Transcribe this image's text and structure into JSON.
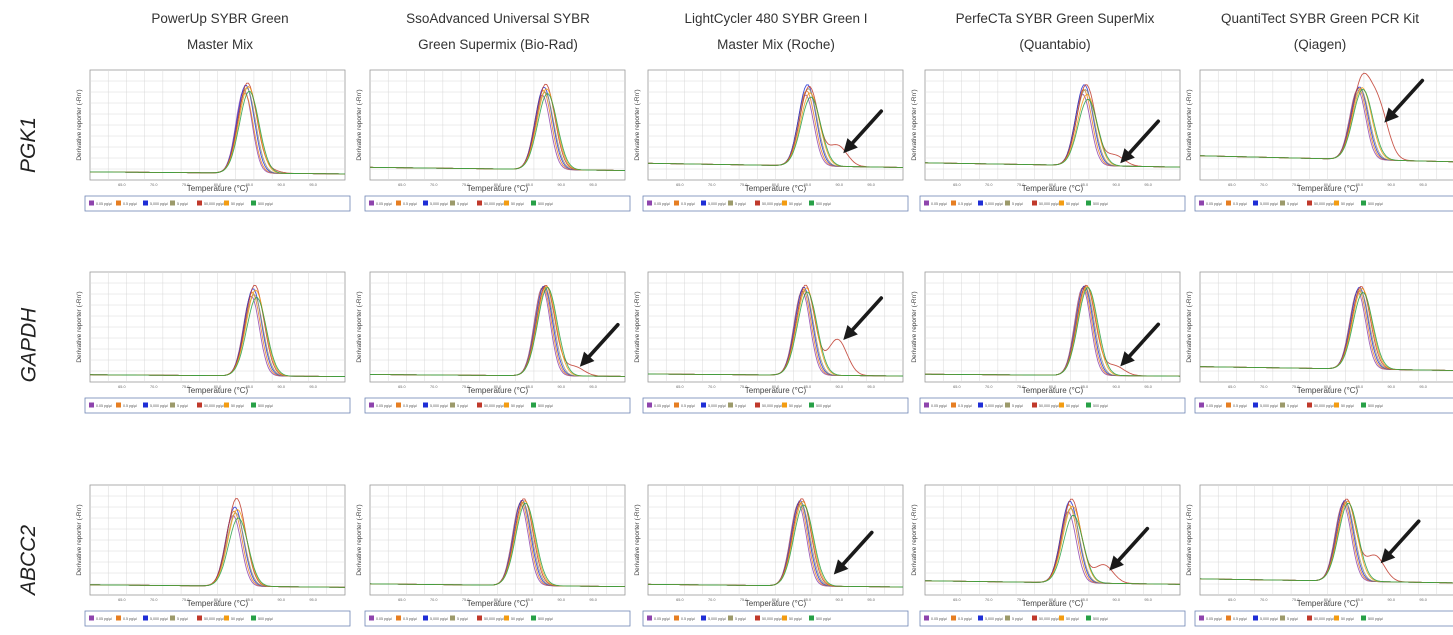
{
  "columns": [
    {
      "line1": "PowerUp SYBR Green",
      "line2": "Master Mix"
    },
    {
      "line1": "SsoAdvanced Universal SYBR",
      "line2": "Green Supermix (Bio-Rad)"
    },
    {
      "line1": "LightCycler 480 SYBR Green I",
      "line2": "Master Mix (Roche)"
    },
    {
      "line1": "PerfeCTa SYBR Green SuperMix",
      "line2": "(Quantabio)"
    },
    {
      "line1": "QuantiTect SYBR Green PCR Kit",
      "line2": "(Qiagen)"
    }
  ],
  "rows": [
    {
      "gene": "PGK1"
    },
    {
      "gene": "GAPDH"
    },
    {
      "gene": "ABCC2"
    }
  ],
  "axis_labels": {
    "x": "Temperature (°C)",
    "y": "Derivative reporter (-Rn')"
  },
  "colors": {
    "arrow": "#1a1a1a",
    "grid": "#d8d8d8",
    "plot_border": "#9a9a9a",
    "legend_border": "#6f86b5"
  },
  "chart_data": [
    {
      "type": "line",
      "grid": true,
      "xlim": [
        60,
        95
      ],
      "x_ticks": [
        "65.0",
        "70.0",
        "75.0",
        "80.0",
        "85.0",
        "90.0",
        "95.0"
      ],
      "series_colors": [
        "#8e44ad",
        "#e67e22",
        "#1f2ed6",
        "#9c9a6a",
        "#c0392b",
        "#f39c12",
        "#27a046"
      ],
      "legend": [
        "0.05 pg/µl",
        "0.5 pg/µl",
        "5,000 pg/µl",
        "5 pg/µl",
        "50,000 pg/µl",
        "50 pg/µl",
        "500 pg/µl"
      ],
      "panels": [
        {
          "gene": "PGK1",
          "reagent": "PowerUp SYBR Green Master Mix",
          "peak_tm": 81.5,
          "peak_values": [
            1.35,
            1.3,
            1.42,
            1.38,
            1.45,
            1.4,
            1.33
          ],
          "baseline": 0.12,
          "extra_peak": {
            "tm": 84.5,
            "value": 0.05
          },
          "arrow": false
        },
        {
          "gene": "PGK1",
          "reagent": "SsoAdvanced Universal SYBR Green Supermix (Bio-Rad)",
          "peak_tm": 84.0,
          "peak_values": [
            0.55,
            0.58,
            0.6,
            0.57,
            0.62,
            0.59,
            0.56
          ],
          "baseline": 0.08,
          "extra_peak": null,
          "arrow": false
        },
        {
          "gene": "PGK1",
          "reagent": "LightCycler 480 SYBR Green I Master Mix (Roche)",
          "peak_tm": 82.0,
          "peak_values": [
            0.42,
            0.44,
            0.47,
            0.45,
            0.46,
            0.43,
            0.41
          ],
          "baseline": 0.08,
          "extra_peak": {
            "tm": 86.0,
            "value": 0.1
          },
          "arrow": true
        },
        {
          "gene": "PGK1",
          "reagent": "PerfeCTa SYBR Green SuperMix (Quantabio)",
          "peak_tm": 82.0,
          "peak_values": [
            0.18,
            0.19,
            0.2,
            0.19,
            0.2,
            0.18,
            0.17
          ],
          "baseline": 0.035,
          "extra_peak": {
            "tm": 86.0,
            "value": 0.022
          },
          "arrow": true
        },
        {
          "gene": "PGK1",
          "reagent": "QuantiTect SYBR Green PCR Kit (Qiagen)",
          "peak_tm": 82.0,
          "peak_values": [
            0.155,
            0.158,
            0.16,
            0.157,
            0.162,
            0.159,
            0.156
          ],
          "baseline": 0.04,
          "extra_peak": {
            "tm": 84.5,
            "value": 0.085
          },
          "arrow": true
        },
        {
          "gene": "GAPDH",
          "reagent": "PowerUp SYBR Green Master Mix",
          "peak_tm": 82.5,
          "peak_values": [
            1.2,
            1.25,
            1.3,
            1.22,
            1.35,
            1.28,
            1.18
          ],
          "baseline": 0.1,
          "extra_peak": null,
          "arrow": false
        },
        {
          "gene": "GAPDH",
          "reagent": "SsoAdvanced Universal SYBR Green Supermix (Bio-Rad)",
          "peak_tm": 84.0,
          "peak_values": [
            2.55,
            2.58,
            2.6,
            2.57,
            2.62,
            2.59,
            2.56
          ],
          "baseline": 0.2,
          "extra_peak": {
            "tm": 88.0,
            "value": 0.25
          },
          "arrow": true
        },
        {
          "gene": "GAPDH",
          "reagent": "LightCycler 480 SYBR Green I Master Mix (Roche)",
          "peak_tm": 81.5,
          "peak_values": [
            2.3,
            2.35,
            2.4,
            2.32,
            2.45,
            2.38,
            2.28
          ],
          "baseline": 0.2,
          "extra_peak": {
            "tm": 86.0,
            "value": 0.9
          },
          "arrow": true
        },
        {
          "gene": "GAPDH",
          "reagent": "PerfeCTa SYBR Green SuperMix (Quantabio)",
          "peak_tm": 82.0,
          "peak_values": [
            2.45,
            2.48,
            2.5,
            2.47,
            2.52,
            2.49,
            2.46
          ],
          "baseline": 0.2,
          "extra_peak": {
            "tm": 86.0,
            "value": 0.25
          },
          "arrow": true
        },
        {
          "gene": "GAPDH",
          "reagent": "QuantiTect SYBR Green PCR Kit (Qiagen)",
          "peak_tm": 82.0,
          "peak_values": [
            0.182,
            0.186,
            0.19,
            0.184,
            0.192,
            0.188,
            0.18
          ],
          "baseline": 0.03,
          "extra_peak": null,
          "arrow": false
        },
        {
          "gene": "ABCC2",
          "reagent": "PowerUp SYBR Green Master Mix",
          "peak_tm": 80.0,
          "peak_values": [
            0.95,
            1.0,
            1.05,
            0.98,
            1.15,
            1.02,
            0.92
          ],
          "baseline": 0.12,
          "extra_peak": null,
          "arrow": false
        },
        {
          "gene": "ABCC2",
          "reagent": "SsoAdvanced Universal SYBR Green Supermix (Bio-Rad)",
          "peak_tm": 81.0,
          "peak_values": [
            1.25,
            1.28,
            1.3,
            1.27,
            1.32,
            1.29,
            1.26
          ],
          "baseline": 0.15,
          "extra_peak": null,
          "arrow": false
        },
        {
          "gene": "ABCC2",
          "reagent": "LightCycler 480 SYBR Green I Master Mix (Roche)",
          "peak_tm": 81.0,
          "peak_values": [
            1.3,
            1.33,
            1.35,
            1.32,
            1.38,
            1.34,
            1.29
          ],
          "baseline": 0.15,
          "extra_peak": null,
          "arrow": true
        },
        {
          "gene": "ABCC2",
          "reagent": "PerfeCTa SYBR Green SuperMix (Quantabio)",
          "peak_tm": 80.0,
          "peak_values": [
            1.2,
            1.3,
            1.35,
            1.25,
            1.38,
            1.28,
            1.15
          ],
          "baseline": 0.2,
          "extra_peak": {
            "tm": 84.5,
            "value": 0.26
          },
          "arrow": true
        },
        {
          "gene": "ABCC2",
          "reagent": "QuantiTect SYBR Green PCR Kit (Qiagen)",
          "peak_tm": 80.0,
          "peak_values": [
            0.145,
            0.148,
            0.15,
            0.147,
            0.152,
            0.149,
            0.146
          ],
          "baseline": 0.025,
          "extra_peak": {
            "tm": 84.0,
            "value": 0.04
          },
          "arrow": true
        }
      ]
    }
  ]
}
